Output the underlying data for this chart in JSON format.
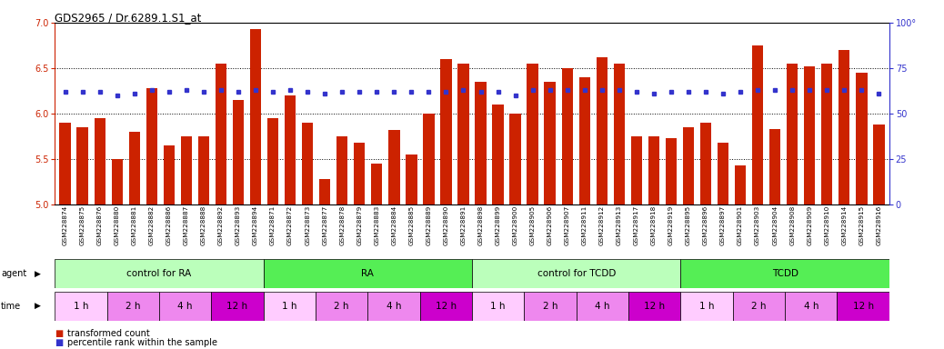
{
  "title": "GDS2965 / Dr.6289.1.S1_at",
  "bar_color": "#CC2200",
  "dot_color": "#3333CC",
  "xlabels": [
    "GSM228874",
    "GSM228875",
    "GSM228876",
    "GSM228880",
    "GSM228881",
    "GSM228882",
    "GSM228886",
    "GSM228887",
    "GSM228888",
    "GSM228892",
    "GSM228893",
    "GSM228894",
    "GSM228871",
    "GSM228872",
    "GSM228873",
    "GSM228877",
    "GSM228878",
    "GSM228879",
    "GSM228883",
    "GSM228884",
    "GSM228885",
    "GSM228889",
    "GSM228890",
    "GSM228891",
    "GSM228898",
    "GSM228899",
    "GSM228900",
    "GSM228905",
    "GSM228906",
    "GSM228907",
    "GSM228911",
    "GSM228912",
    "GSM228913",
    "GSM228917",
    "GSM228918",
    "GSM228919",
    "GSM228895",
    "GSM228896",
    "GSM228897",
    "GSM228901",
    "GSM228903",
    "GSM228904",
    "GSM228908",
    "GSM228909",
    "GSM228910",
    "GSM228914",
    "GSM228915",
    "GSM228916"
  ],
  "bar_values": [
    5.9,
    5.85,
    5.95,
    5.5,
    5.8,
    6.28,
    5.65,
    5.75,
    5.75,
    6.55,
    6.15,
    6.93,
    5.95,
    6.2,
    5.9,
    5.28,
    5.75,
    5.68,
    5.45,
    5.82,
    5.55,
    6.0,
    6.6,
    6.55,
    6.35,
    6.1,
    6.0,
    6.55,
    6.35,
    6.5,
    6.4,
    6.62,
    6.55,
    5.75,
    5.75,
    5.73,
    5.85,
    5.9,
    5.68,
    5.43,
    6.75,
    5.83,
    6.55,
    6.52,
    6.55,
    6.7,
    6.45,
    5.88
  ],
  "dot_values": [
    62,
    62,
    62,
    60,
    61,
    63,
    62,
    63,
    62,
    63,
    62,
    63,
    62,
    63,
    62,
    61,
    62,
    62,
    62,
    62,
    62,
    62,
    62,
    63,
    62,
    62,
    60,
    63,
    63,
    63,
    63,
    63,
    63,
    62,
    61,
    62,
    62,
    62,
    61,
    62,
    63,
    63,
    63,
    63,
    63,
    63,
    63,
    61
  ],
  "ylim_left": [
    5.0,
    7.0
  ],
  "ylim_right": [
    0,
    100
  ],
  "yticks_left": [
    5.0,
    5.5,
    6.0,
    6.5,
    7.0
  ],
  "yticks_right": [
    0,
    25,
    50,
    75,
    100
  ],
  "agent_groups": [
    {
      "label": "control for RA",
      "start": 0,
      "end": 12,
      "color": "#BBFFBB"
    },
    {
      "label": "RA",
      "start": 12,
      "end": 24,
      "color": "#55EE55"
    },
    {
      "label": "control for TCDD",
      "start": 24,
      "end": 36,
      "color": "#BBFFBB"
    },
    {
      "label": "TCDD",
      "start": 36,
      "end": 48,
      "color": "#55EE55"
    }
  ],
  "time_colors_map": {
    "1 h": "#FFCCFF",
    "2 h": "#EE88EE",
    "4 h": "#EE88EE",
    "12 h": "#CC00CC"
  },
  "time_labels_cycle": [
    "1 h",
    "2 h",
    "4 h",
    "12 h"
  ],
  "legend_bar_label": "transformed count",
  "legend_dot_label": "percentile rank within the sample"
}
